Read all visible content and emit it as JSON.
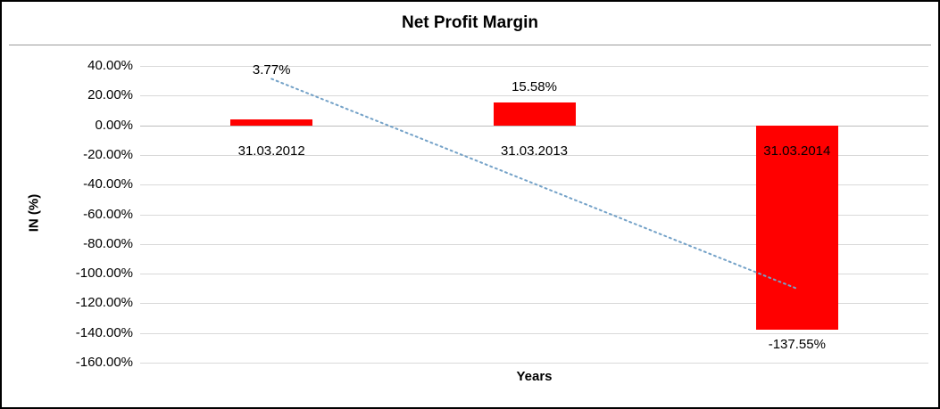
{
  "chart_data": {
    "type": "bar",
    "title": "Net Profit Margin",
    "categories": [
      "31.03.2012",
      "31.03.2013",
      "31.03.2014"
    ],
    "values": [
      3.77,
      15.58,
      -137.55
    ],
    "value_labels": [
      "3.77%",
      "15.58%",
      "-137.55%"
    ],
    "xlabel": "Years",
    "ylabel": "IN (%)",
    "ylim": [
      -160,
      40
    ],
    "ytick_step": 20,
    "ytick_labels": [
      "40.00%",
      "20.00%",
      "0.00%",
      "-20.00%",
      "-40.00%",
      "-60.00%",
      "-80.00%",
      "-100.00%",
      "-120.00%",
      "-140.00%",
      "-160.00%"
    ],
    "grid": true,
    "legend": "none",
    "bar_color": "#ff0000",
    "trendline": {
      "type": "linear",
      "start_value": 31.3,
      "end_value": -110.1,
      "color": "#74a2c8",
      "style": "dotted"
    },
    "label_y_adjust": [
      -38,
      0,
      0
    ]
  }
}
